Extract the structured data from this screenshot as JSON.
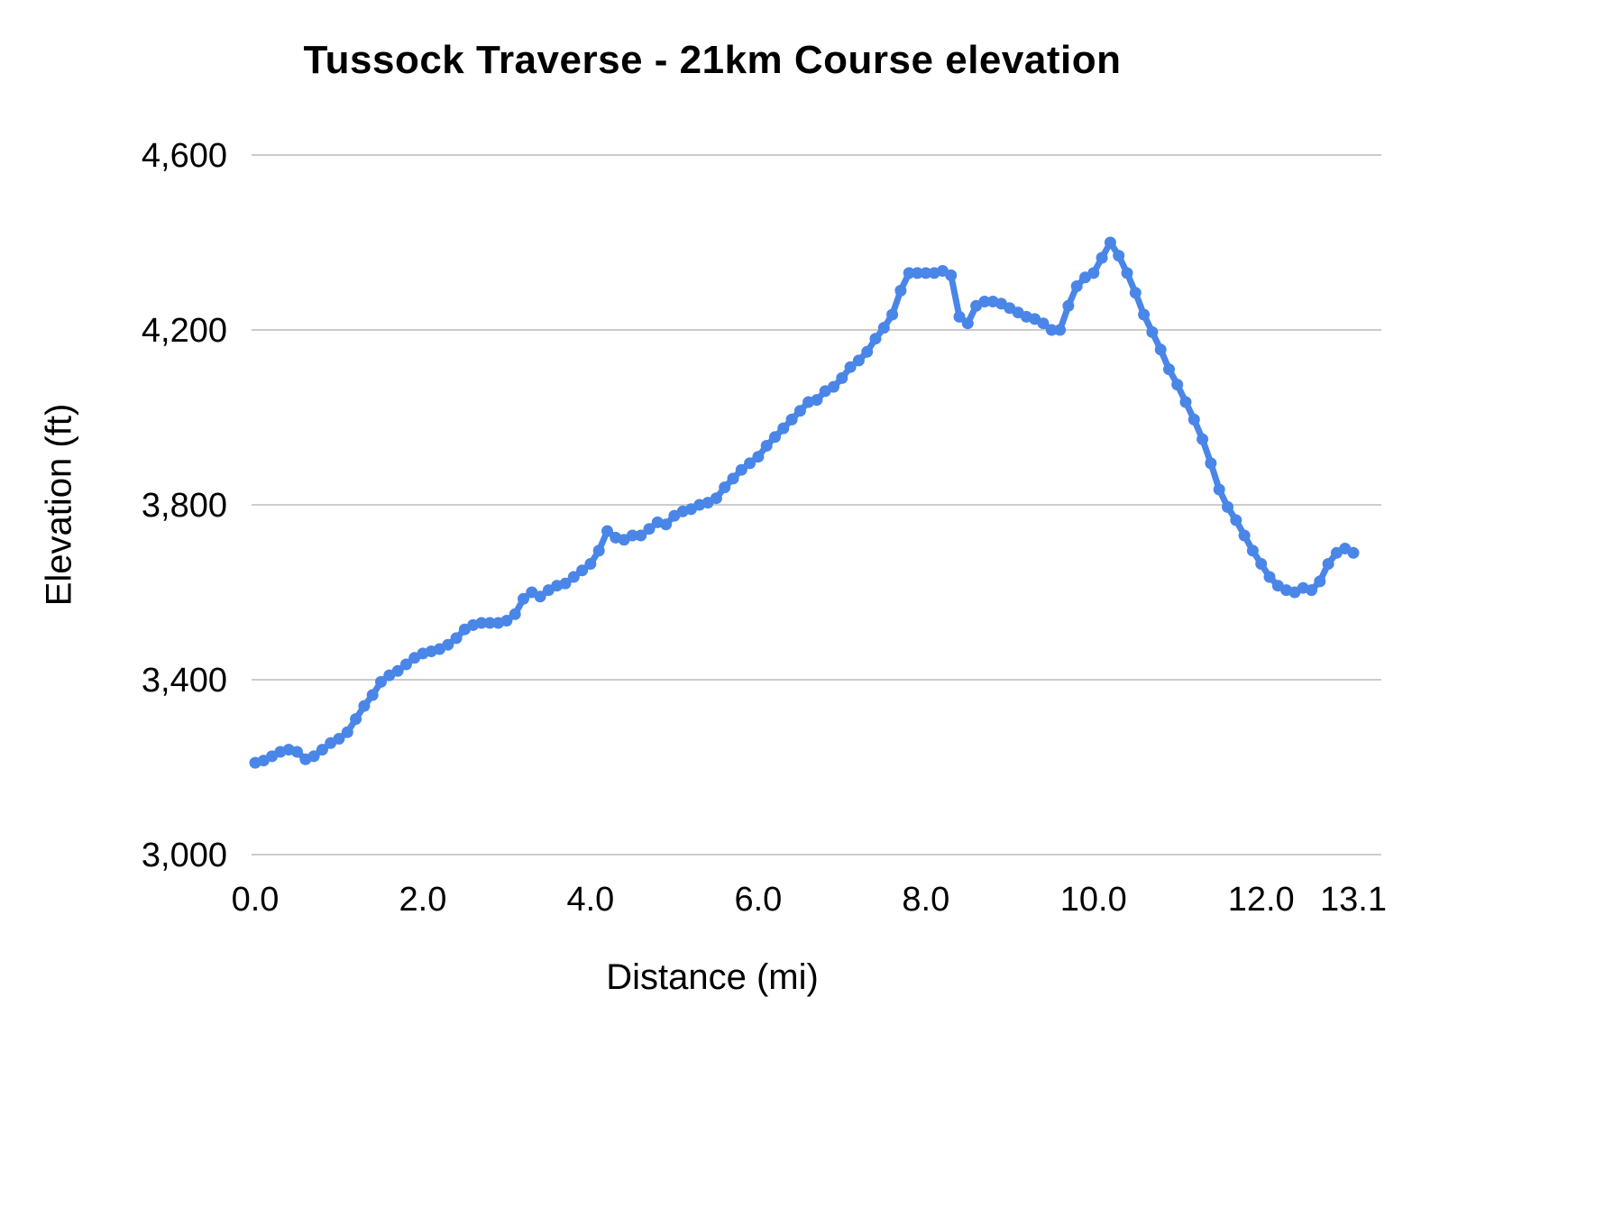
{
  "chart_data": {
    "type": "line",
    "title": "Tussock Traverse - 21km Course elevation",
    "xlabel": "Distance (mi)",
    "ylabel": "Elevation (ft)",
    "xlim": [
      0,
      13.1
    ],
    "ylim": [
      3000,
      4600
    ],
    "grid": "horizontal",
    "legend": "none",
    "line_color": "#4a86e8",
    "grid_color": "#cccccc",
    "x_ticks": {
      "values": [
        0,
        2,
        4,
        6,
        8,
        10,
        12,
        13.1
      ],
      "labels": [
        "0.0",
        "2.0",
        "4.0",
        "6.0",
        "8.0",
        "10.0",
        "12.0",
        "13.1"
      ]
    },
    "y_ticks": {
      "values": [
        3000,
        3400,
        3800,
        4200,
        4600
      ],
      "labels": [
        "3,000",
        "3,400",
        "3,800",
        "4,200",
        "4,600"
      ]
    },
    "series": [
      {
        "name": "Elevation",
        "x": [
          0.0,
          0.1,
          0.2,
          0.3,
          0.4,
          0.5,
          0.6,
          0.7,
          0.8,
          0.9,
          1.0,
          1.1,
          1.2,
          1.3,
          1.4,
          1.5,
          1.6,
          1.7,
          1.8,
          1.9,
          2.0,
          2.1,
          2.2,
          2.3,
          2.4,
          2.5,
          2.6,
          2.7,
          2.8,
          2.9,
          3.0,
          3.1,
          3.2,
          3.3,
          3.4,
          3.5,
          3.6,
          3.7,
          3.8,
          3.9,
          4.0,
          4.1,
          4.2,
          4.3,
          4.4,
          4.5,
          4.6,
          4.7,
          4.8,
          4.9,
          5.0,
          5.1,
          5.2,
          5.3,
          5.4,
          5.5,
          5.6,
          5.7,
          5.8,
          5.9,
          6.0,
          6.1,
          6.2,
          6.3,
          6.4,
          6.5,
          6.6,
          6.7,
          6.8,
          6.9,
          7.0,
          7.1,
          7.2,
          7.3,
          7.4,
          7.5,
          7.6,
          7.7,
          7.8,
          7.9,
          8.0,
          8.1,
          8.2,
          8.3,
          8.4,
          8.5,
          8.6,
          8.7,
          8.8,
          8.9,
          9.0,
          9.1,
          9.2,
          9.3,
          9.4,
          9.5,
          9.6,
          9.7,
          9.8,
          9.9,
          10.0,
          10.1,
          10.2,
          10.3,
          10.4,
          10.5,
          10.6,
          10.7,
          10.8,
          10.9,
          11.0,
          11.1,
          11.2,
          11.3,
          11.4,
          11.5,
          11.6,
          11.7,
          11.8,
          11.9,
          12.0,
          12.1,
          12.2,
          12.3,
          12.4,
          12.5,
          12.6,
          12.7,
          12.8,
          12.9,
          13.0,
          13.1
        ],
        "y": [
          3210,
          3215,
          3225,
          3235,
          3240,
          3235,
          3218,
          3225,
          3240,
          3255,
          3265,
          3280,
          3310,
          3340,
          3365,
          3395,
          3410,
          3420,
          3435,
          3450,
          3460,
          3465,
          3470,
          3480,
          3495,
          3515,
          3525,
          3530,
          3530,
          3530,
          3535,
          3550,
          3585,
          3600,
          3590,
          3605,
          3615,
          3620,
          3635,
          3650,
          3665,
          3695,
          3740,
          3725,
          3720,
          3730,
          3730,
          3745,
          3760,
          3755,
          3775,
          3785,
          3790,
          3800,
          3805,
          3815,
          3840,
          3860,
          3880,
          3895,
          3910,
          3935,
          3955,
          3975,
          3995,
          4015,
          4035,
          4040,
          4060,
          4070,
          4090,
          4115,
          4130,
          4150,
          4180,
          4205,
          4235,
          4290,
          4330,
          4330,
          4330,
          4330,
          4335,
          4325,
          4230,
          4215,
          4255,
          4265,
          4265,
          4260,
          4250,
          4240,
          4230,
          4225,
          4215,
          4200,
          4200,
          4255,
          4300,
          4320,
          4330,
          4365,
          4400,
          4370,
          4330,
          4285,
          4235,
          4195,
          4155,
          4110,
          4075,
          4035,
          3995,
          3950,
          3895,
          3835,
          3795,
          3765,
          3730,
          3695,
          3665,
          3635,
          3615,
          3605,
          3600,
          3610,
          3605,
          3625,
          3665,
          3690,
          3700,
          3690
        ]
      }
    ]
  }
}
